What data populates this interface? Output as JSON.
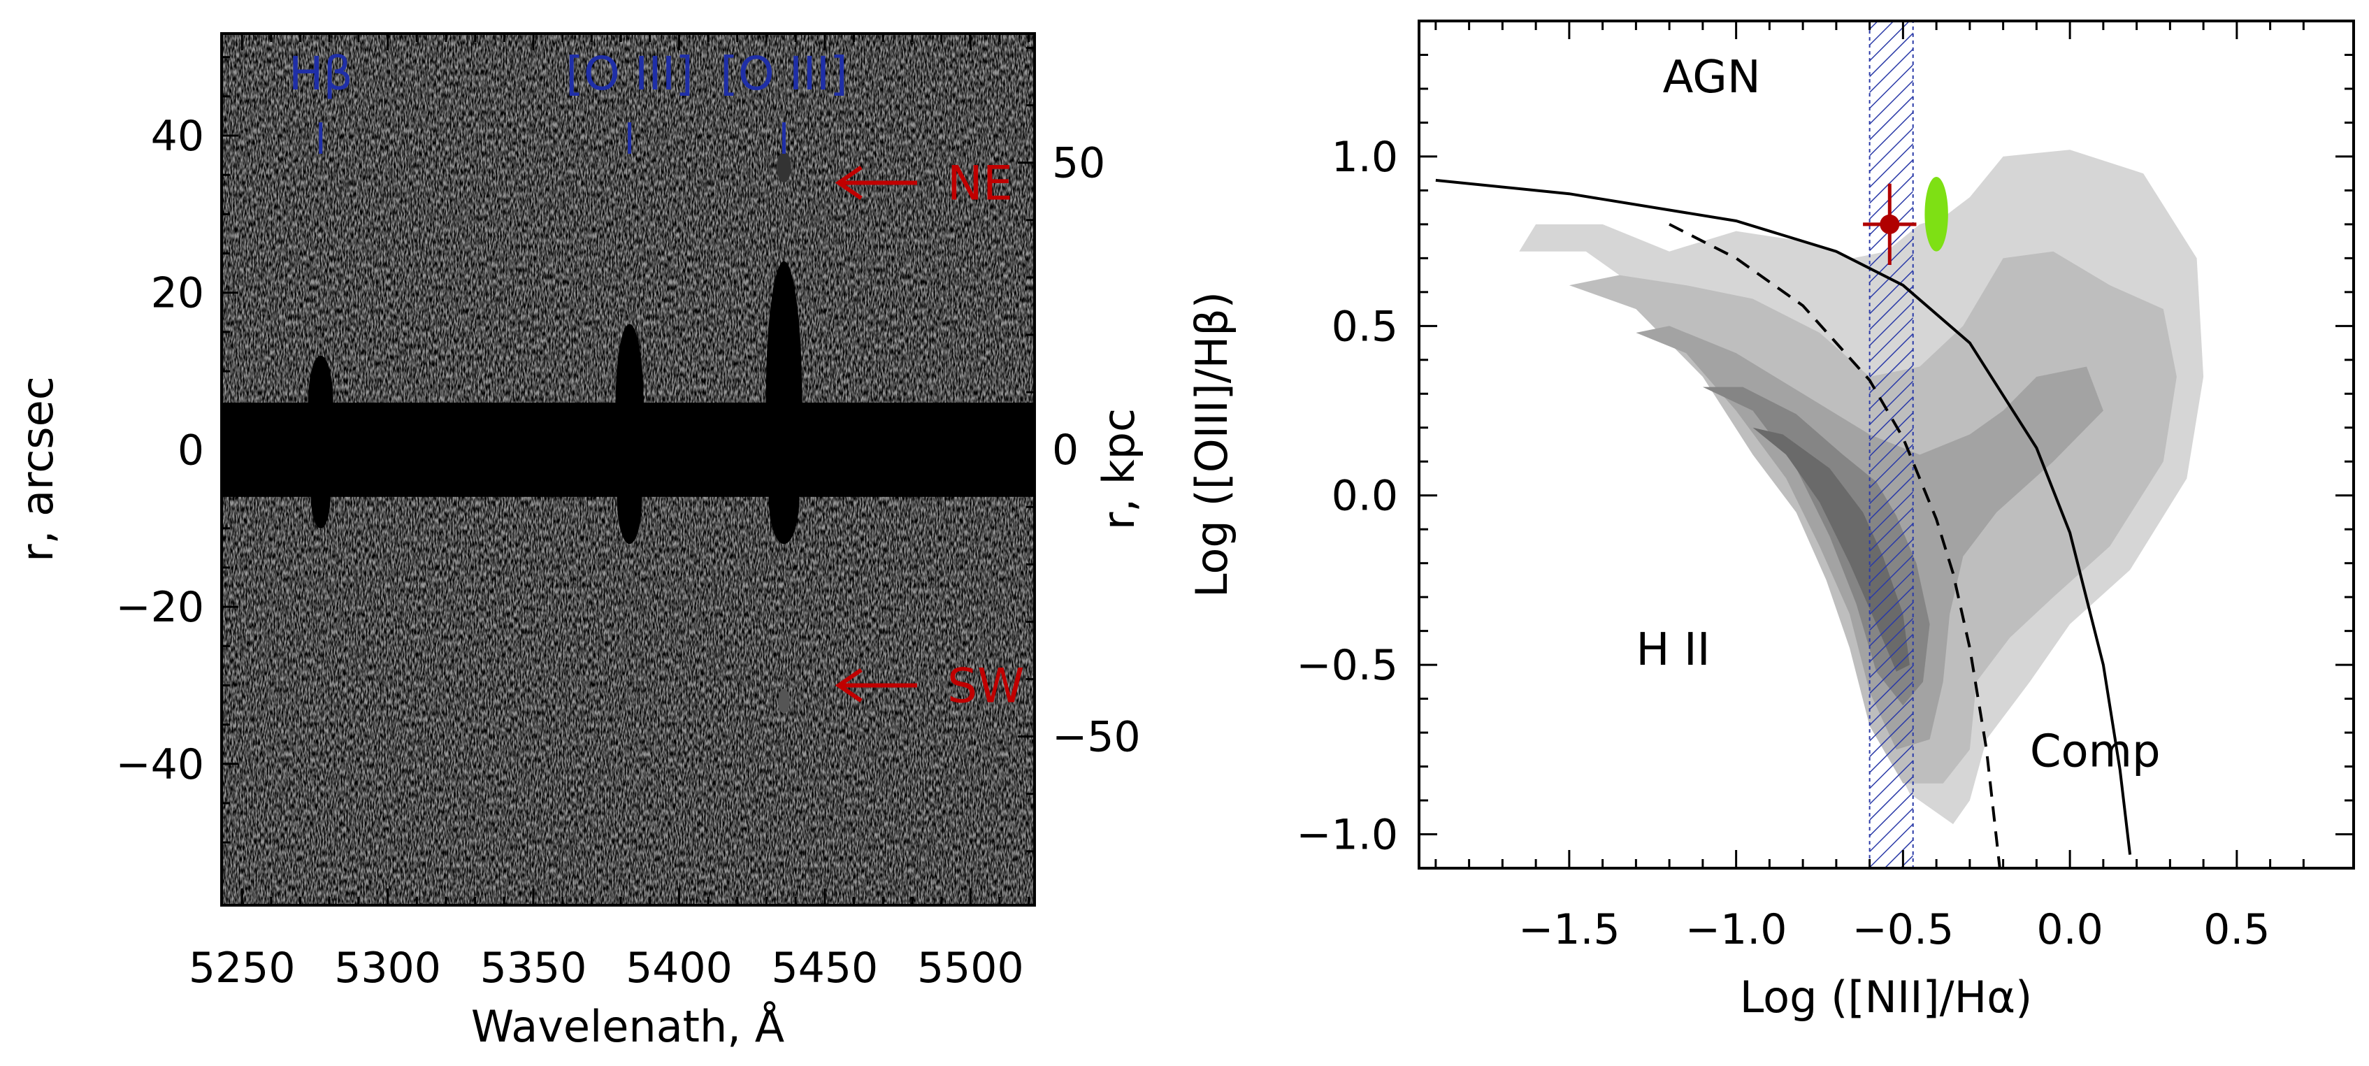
{
  "chart_data": [
    {
      "type": "heatmap",
      "title": "",
      "xlabel": "Wavelenath, Å",
      "ylabel": "r, arcsec",
      "y2label": "r, kpc",
      "xlim": [
        5243,
        5522
      ],
      "ylim": [
        -58,
        53
      ],
      "y2lim": [
        -79.4,
        72.5
      ],
      "x_ticks": [
        5250,
        5300,
        5350,
        5400,
        5450,
        5500
      ],
      "y_ticks": [
        -40,
        -20,
        0,
        20,
        40
      ],
      "y2_ticks": [
        -50,
        0,
        50
      ],
      "emission_lines": [
        {
          "label": "Hβ",
          "wavelength": 5277
        },
        {
          "label": "[O III]",
          "wavelength": 5383
        },
        {
          "label": "[O III]",
          "wavelength": 5436
        }
      ],
      "annotations": [
        {
          "label": "NE",
          "r_arcsec": 34,
          "color": "#c00000"
        },
        {
          "label": "SW",
          "r_arcsec": -30,
          "color": "#c00000"
        }
      ],
      "colors": {
        "lines": "#1f2fa8",
        "arrows": "#c00000",
        "continuum": "#000000"
      }
    },
    {
      "type": "scatter",
      "title": "",
      "xlabel": "Log ([NII]/Hα)",
      "ylabel": "Log ([OIII]/Hβ)",
      "xlim": [
        -1.95,
        0.85
      ],
      "ylim": [
        -1.1,
        1.4
      ],
      "x_ticks": [
        -1.5,
        -1.0,
        -0.5,
        0.0,
        0.5
      ],
      "y_ticks": [
        -1.0,
        -0.5,
        0.0,
        0.5,
        1.0
      ],
      "region_labels": [
        "AGN",
        "H II",
        "Comp"
      ],
      "kewley_curve": {
        "x": [
          -1.9,
          -1.5,
          -1.0,
          -0.7,
          -0.5,
          -0.3,
          -0.1,
          0.0,
          0.1,
          0.15,
          0.18
        ],
        "y": [
          0.93,
          0.89,
          0.81,
          0.72,
          0.62,
          0.45,
          0.14,
          -0.11,
          -0.5,
          -0.81,
          -1.06
        ]
      },
      "kauffmann_curve": {
        "x": [
          -1.2,
          -1.0,
          -0.8,
          -0.6,
          -0.5,
          -0.4,
          -0.35,
          -0.3,
          -0.25,
          -0.21
        ],
        "y": [
          0.8,
          0.7,
          0.56,
          0.34,
          0.17,
          -0.07,
          -0.23,
          -0.45,
          -0.75,
          -1.1
        ]
      },
      "hatched_band": {
        "x_min": -0.6,
        "x_max": -0.47
      },
      "point": {
        "x": -0.54,
        "y": 0.8,
        "x_err": 0.08,
        "y_err": 0.12,
        "color": "#b00000"
      },
      "ellipse": {
        "x": -0.4,
        "y": 0.83,
        "rx": 0.035,
        "ry": 0.11,
        "color": "#7ee014"
      },
      "contours": [
        {
          "level": 1,
          "color": "#d6d6d6",
          "x": [
            -1.65,
            -1.45,
            -1.25,
            -1.05,
            -0.9,
            -0.8,
            -0.75,
            -0.68,
            -0.62,
            -0.48,
            -0.35,
            -0.3,
            -0.25,
            -0.12,
            0.0,
            0.18,
            0.35,
            0.4,
            0.38,
            0.22,
            0.0,
            -0.2,
            -0.3,
            -0.38,
            -0.45,
            -0.55,
            -0.65,
            -0.8,
            -1.0,
            -1.2,
            -1.4,
            -1.6
          ],
          "y": [
            0.72,
            0.72,
            0.58,
            0.38,
            0.15,
            -0.05,
            -0.18,
            -0.35,
            -0.6,
            -0.88,
            -0.97,
            -0.9,
            -0.72,
            -0.55,
            -0.38,
            -0.22,
            0.05,
            0.35,
            0.7,
            0.95,
            1.02,
            1.0,
            0.88,
            0.82,
            0.8,
            0.72,
            0.7,
            0.75,
            0.78,
            0.72,
            0.8,
            0.8
          ]
        },
        {
          "level": 2,
          "color": "#bebebe",
          "x": [
            -1.5,
            -1.3,
            -1.1,
            -0.95,
            -0.82,
            -0.73,
            -0.66,
            -0.6,
            -0.5,
            -0.38,
            -0.3,
            -0.28,
            -0.18,
            -0.05,
            0.12,
            0.28,
            0.32,
            0.28,
            0.12,
            -0.05,
            -0.2,
            -0.32,
            -0.45,
            -0.6,
            -0.75,
            -0.95,
            -1.15,
            -1.35
          ],
          "y": [
            0.62,
            0.55,
            0.35,
            0.12,
            -0.05,
            -0.25,
            -0.45,
            -0.68,
            -0.85,
            -0.85,
            -0.75,
            -0.55,
            -0.42,
            -0.3,
            -0.15,
            0.1,
            0.35,
            0.55,
            0.62,
            0.72,
            0.7,
            0.5,
            0.38,
            0.35,
            0.48,
            0.58,
            0.62,
            0.65
          ]
        },
        {
          "level": 3,
          "color": "#a3a3a3",
          "x": [
            -1.3,
            -1.15,
            -1.0,
            -0.85,
            -0.75,
            -0.66,
            -0.6,
            -0.52,
            -0.42,
            -0.38,
            -0.36,
            -0.32,
            -0.22,
            -0.05,
            0.1,
            0.05,
            -0.1,
            -0.2,
            -0.3,
            -0.45,
            -0.6,
            -0.8,
            -1.0,
            -1.2
          ],
          "y": [
            0.48,
            0.42,
            0.25,
            0.05,
            -0.15,
            -0.35,
            -0.58,
            -0.75,
            -0.72,
            -0.55,
            -0.35,
            -0.18,
            -0.05,
            0.1,
            0.25,
            0.38,
            0.35,
            0.25,
            0.18,
            0.12,
            0.18,
            0.3,
            0.42,
            0.5
          ]
        },
        {
          "level": 4,
          "color": "#858585",
          "x": [
            -1.1,
            -0.95,
            -0.82,
            -0.72,
            -0.64,
            -0.58,
            -0.5,
            -0.44,
            -0.42,
            -0.46,
            -0.52,
            -0.58,
            -0.68,
            -0.82,
            -0.98
          ],
          "y": [
            0.32,
            0.25,
            0.08,
            -0.12,
            -0.32,
            -0.52,
            -0.62,
            -0.55,
            -0.38,
            -0.2,
            -0.06,
            0.04,
            0.12,
            0.24,
            0.32
          ]
        },
        {
          "level": 5,
          "color": "#6a6a6a",
          "x": [
            -0.95,
            -0.85,
            -0.75,
            -0.66,
            -0.58,
            -0.52,
            -0.48,
            -0.5,
            -0.56,
            -0.62,
            -0.72,
            -0.86
          ],
          "y": [
            0.2,
            0.12,
            -0.02,
            -0.2,
            -0.38,
            -0.52,
            -0.5,
            -0.35,
            -0.18,
            -0.05,
            0.08,
            0.18
          ]
        }
      ]
    }
  ]
}
